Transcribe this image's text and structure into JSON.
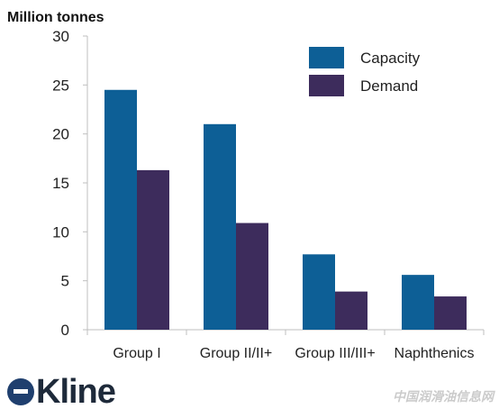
{
  "chart_data": {
    "type": "bar",
    "title": "",
    "ylabel": "Million tonnes",
    "xlabel": "",
    "categories": [
      "Group I",
      "Group II/II+",
      "Group III/III+",
      "Naphthenics"
    ],
    "series": [
      {
        "name": "Capacity",
        "values": [
          24.5,
          21.0,
          7.7,
          5.6
        ],
        "color": "#0d5f96"
      },
      {
        "name": "Demand",
        "values": [
          16.3,
          10.9,
          3.9,
          3.4
        ],
        "color": "#3d2c5c"
      }
    ],
    "ylim": [
      0,
      30
    ],
    "yticks": [
      0,
      5,
      10,
      15,
      20,
      25,
      30
    ],
    "grid": false,
    "legend_position": "top-right"
  },
  "logo": {
    "name": "Kline"
  },
  "watermark": {
    "text": "中国润滑油信息网"
  }
}
